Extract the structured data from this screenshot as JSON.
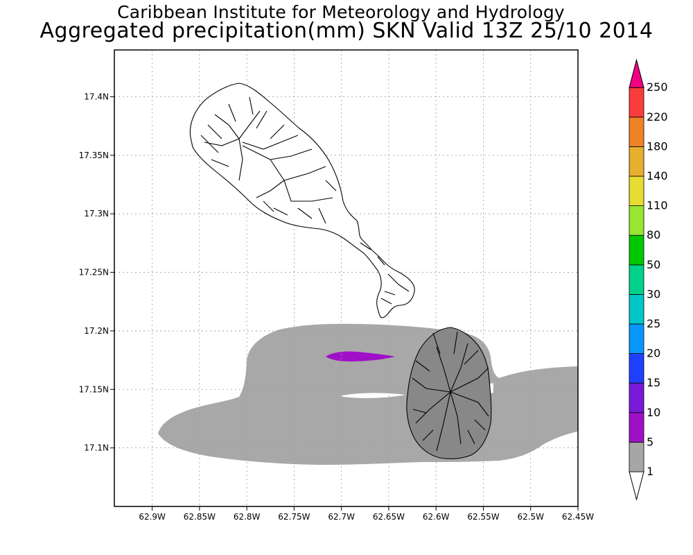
{
  "header": {
    "title": "Caribbean Institute for Meteorology and Hydrology",
    "subtitle": "Aggregated precipitation(mm) SKN Valid 13Z 25/10 2014"
  },
  "map": {
    "lon_range": [
      -62.94,
      -62.45
    ],
    "lat_range": [
      17.05,
      17.44
    ],
    "x_ticks": [
      {
        "lon": -62.9,
        "label": "62.9W"
      },
      {
        "lon": -62.85,
        "label": "62.85W"
      },
      {
        "lon": -62.8,
        "label": "62.8W"
      },
      {
        "lon": -62.75,
        "label": "62.75W"
      },
      {
        "lon": -62.7,
        "label": "62.7W"
      },
      {
        "lon": -62.65,
        "label": "62.65W"
      },
      {
        "lon": -62.6,
        "label": "62.6W"
      },
      {
        "lon": -62.55,
        "label": "62.55W"
      },
      {
        "lon": -62.5,
        "label": "62.5W"
      },
      {
        "lon": -62.45,
        "label": "62.45W"
      }
    ],
    "y_ticks": [
      {
        "lat": 17.4,
        "label": "17.4N"
      },
      {
        "lat": 17.35,
        "label": "17.35N"
      },
      {
        "lat": 17.3,
        "label": "17.3N"
      },
      {
        "lat": 17.25,
        "label": "17.25N"
      },
      {
        "lat": 17.2,
        "label": "17.2N"
      },
      {
        "lat": 17.15,
        "label": "17.15N"
      },
      {
        "lat": 17.1,
        "label": "17.1N"
      }
    ],
    "grid": true
  },
  "colorbar": {
    "levels": [
      "1",
      "5",
      "10",
      "15",
      "20",
      "25",
      "30",
      "50",
      "80",
      "110",
      "140",
      "180",
      "220",
      "250"
    ],
    "colors": [
      "#ffffff",
      "#a6a6a6",
      "#a010c8",
      "#7a1ad8",
      "#2040ff",
      "#0a96ff",
      "#00c8c8",
      "#00d28c",
      "#00c800",
      "#96e632",
      "#e6dc32",
      "#e6af2d",
      "#f08228",
      "#fa3c3c",
      "#f00082"
    ]
  },
  "precip_areas": [
    {
      "label": "1-5 mm band",
      "color": "#a6a6a6"
    },
    {
      "label": "5-10 mm cell",
      "color": "#a010c8"
    }
  ]
}
